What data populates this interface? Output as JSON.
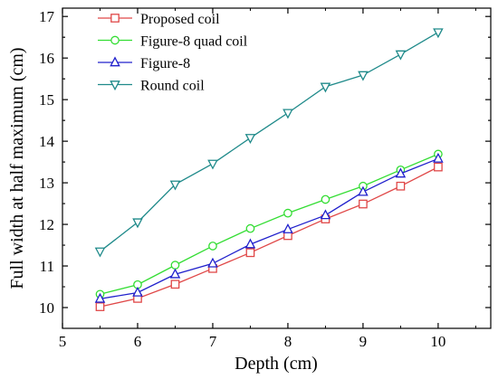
{
  "chart_data": {
    "type": "line",
    "xlabel": "Depth (cm)",
    "ylabel": "Full width at half maximum (cm)",
    "xlim": [
      5,
      10.7
    ],
    "ylim": [
      9.5,
      17.2
    ],
    "xticks": [
      "5",
      "6",
      "7",
      "8",
      "9",
      "10"
    ],
    "yticks": [
      "10",
      "11",
      "12",
      "13",
      "14",
      "15",
      "16",
      "17"
    ],
    "x": [
      5.5,
      6,
      6.5,
      7,
      7.5,
      8,
      8.5,
      9,
      9.5,
      10
    ],
    "legend_position": "top-left",
    "series": [
      {
        "name": "Proposed coil",
        "color": "#e04848",
        "marker": "square",
        "values": [
          10.02,
          10.22,
          10.56,
          10.94,
          11.32,
          11.73,
          12.13,
          12.49,
          12.92,
          13.38
        ]
      },
      {
        "name": "Figure-8 quad coil",
        "color": "#33dd33",
        "marker": "circle",
        "values": [
          10.32,
          10.55,
          11.02,
          11.48,
          11.9,
          12.27,
          12.6,
          12.92,
          13.31,
          13.69
        ]
      },
      {
        "name": "Figure-8",
        "color": "#2020cc",
        "marker": "triangle-up",
        "values": [
          10.21,
          10.36,
          10.8,
          11.06,
          11.52,
          11.88,
          12.22,
          12.78,
          13.22,
          13.58
        ]
      },
      {
        "name": "Round coil",
        "color": "#1f8a8a",
        "marker": "triangle-down",
        "values": [
          11.35,
          12.05,
          12.96,
          13.46,
          14.08,
          14.68,
          15.31,
          15.59,
          16.09,
          16.62
        ]
      }
    ]
  }
}
